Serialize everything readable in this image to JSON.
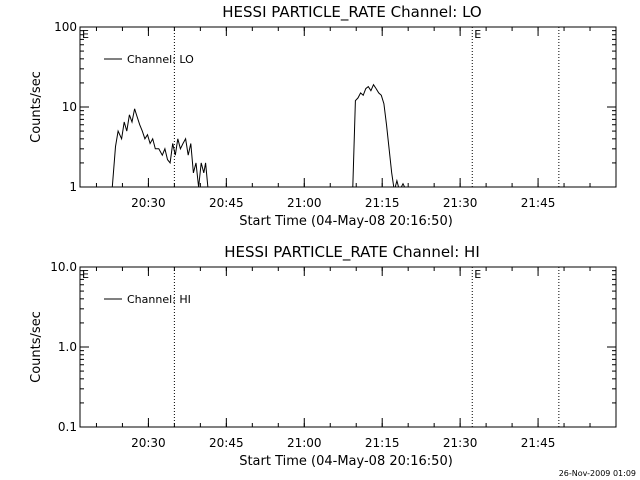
{
  "chart_data": [
    {
      "type": "line",
      "title": "HESSI PARTICLE_RATE Channel: LO",
      "xlabel": "Start Time (04-May-08 20:16:50)",
      "ylabel": "Counts/sec",
      "yscale": "log",
      "ylim": [
        1,
        100
      ],
      "yticks": [
        {
          "value": 1,
          "label": "1"
        },
        {
          "value": 10,
          "label": "10"
        },
        {
          "value": 100,
          "label": "100"
        }
      ],
      "xlim": [
        "20:16:50",
        "22:00:00"
      ],
      "xticks": [
        "20:30",
        "20:45",
        "21:00",
        "21:15",
        "21:30",
        "21:45"
      ],
      "grid": false,
      "legend": "top-left",
      "series": [
        {
          "name": "Channel: LO",
          "points": [
            [
              "20:21:00",
              0.9
            ],
            [
              "20:23:00",
              0.9
            ],
            [
              "20:23:40",
              3.2
            ],
            [
              "20:24:10",
              5.0
            ],
            [
              "20:24:50",
              4.0
            ],
            [
              "20:25:20",
              6.5
            ],
            [
              "20:25:50",
              5.0
            ],
            [
              "20:26:20",
              8.0
            ],
            [
              "20:26:50",
              6.5
            ],
            [
              "20:27:20",
              9.5
            ],
            [
              "20:27:50",
              7.5
            ],
            [
              "20:28:20",
              6.0
            ],
            [
              "20:28:50",
              5.0
            ],
            [
              "20:29:20",
              4.0
            ],
            [
              "20:29:50",
              4.5
            ],
            [
              "20:30:20",
              3.5
            ],
            [
              "20:30:50",
              4.0
            ],
            [
              "20:31:20",
              3.0
            ],
            [
              "20:32:00",
              3.0
            ],
            [
              "20:32:40",
              2.5
            ],
            [
              "20:33:10",
              3.0
            ],
            [
              "20:33:40",
              2.2
            ],
            [
              "20:34:10",
              2.0
            ],
            [
              "20:34:40",
              3.5
            ],
            [
              "20:35:10",
              2.5
            ],
            [
              "20:35:40",
              4.0
            ],
            [
              "20:36:10",
              3.0
            ],
            [
              "20:36:40",
              3.5
            ],
            [
              "20:37:10",
              4.0
            ],
            [
              "20:37:40",
              2.5
            ],
            [
              "20:38:10",
              3.5
            ],
            [
              "20:38:40",
              1.5
            ],
            [
              "20:39:10",
              2.0
            ],
            [
              "20:39:40",
              1.0
            ],
            [
              "20:40:10",
              2.0
            ],
            [
              "20:40:40",
              1.5
            ],
            [
              "20:41:00",
              2.0
            ],
            [
              "20:41:30",
              0.9
            ],
            [
              "21:08:00",
              0.9
            ],
            [
              "21:08:40",
              1.0
            ],
            [
              "21:09:20",
              1.0
            ],
            [
              "21:09:50",
              12.0
            ],
            [
              "21:10:20",
              13.0
            ],
            [
              "21:10:50",
              15.0
            ],
            [
              "21:11:20",
              14.0
            ],
            [
              "21:11:50",
              17.0
            ],
            [
              "21:12:20",
              18.0
            ],
            [
              "21:12:50",
              16.0
            ],
            [
              "21:13:20",
              19.0
            ],
            [
              "21:13:50",
              17.0
            ],
            [
              "21:14:20",
              15.0
            ],
            [
              "21:14:50",
              14.0
            ],
            [
              "21:15:20",
              11.0
            ],
            [
              "21:15:50",
              6.0
            ],
            [
              "21:16:20",
              3.0
            ],
            [
              "21:16:50",
              1.5
            ],
            [
              "21:17:20",
              0.9
            ],
            [
              "21:17:50",
              1.2
            ],
            [
              "21:18:20",
              0.9
            ],
            [
              "21:19:00",
              1.1
            ],
            [
              "21:19:40",
              0.9
            ]
          ]
        }
      ],
      "vertical_markers": [
        {
          "time": "20:35:00",
          "label": ""
        },
        {
          "time": "21:32:20",
          "label": "E"
        },
        {
          "time": "21:49:00",
          "label": ""
        }
      ],
      "corner_label": "E"
    },
    {
      "type": "line",
      "title": "HESSI PARTICLE_RATE Channel: HI",
      "xlabel": "Start Time (04-May-08 20:16:50)",
      "ylabel": "Counts/sec",
      "yscale": "log",
      "ylim": [
        0.1,
        10
      ],
      "yticks": [
        {
          "value": 0.1,
          "label": "0.1"
        },
        {
          "value": 1,
          "label": "1.0"
        },
        {
          "value": 10,
          "label": "10.0"
        }
      ],
      "xlim": [
        "20:16:50",
        "22:00:00"
      ],
      "xticks": [
        "20:30",
        "20:45",
        "21:00",
        "21:15",
        "21:30",
        "21:45"
      ],
      "grid": false,
      "legend": "top-left",
      "series": [
        {
          "name": "Channel: HI",
          "points": []
        }
      ],
      "vertical_markers": [
        {
          "time": "20:35:00",
          "label": ""
        },
        {
          "time": "21:32:20",
          "label": "E"
        },
        {
          "time": "21:49:00",
          "label": ""
        }
      ],
      "corner_label": "E"
    }
  ],
  "footer": {
    "timestamp": "26-Nov-2009 01:09"
  }
}
